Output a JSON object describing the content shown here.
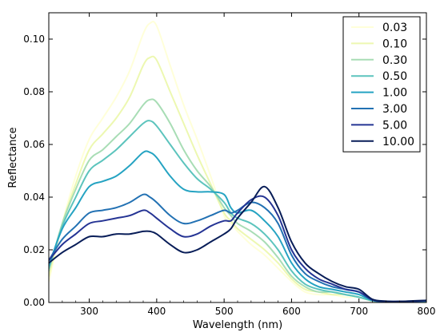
{
  "chart_data": {
    "type": "line",
    "xlabel": "Wavelength (nm)",
    "ylabel": "Reflectance",
    "xlim": [
      240,
      800
    ],
    "ylim": [
      0.0,
      0.11
    ],
    "x_ticks": [
      "300",
      "400",
      "500",
      "600",
      "700",
      "800"
    ],
    "y_ticks": [
      "0.00",
      "0.02",
      "0.04",
      "0.06",
      "0.08",
      "0.10"
    ],
    "grid": false,
    "legend_position": "top-right",
    "x": [
      240,
      260,
      280,
      300,
      320,
      340,
      360,
      380,
      390,
      400,
      420,
      440,
      460,
      480,
      500,
      510,
      520,
      540,
      560,
      580,
      600,
      620,
      640,
      660,
      680,
      700,
      720,
      740,
      760,
      780,
      800
    ],
    "series": [
      {
        "name": "0.03",
        "color": "#ffffd9",
        "values": [
          0.008,
          0.03,
          0.048,
          0.062,
          0.07,
          0.078,
          0.088,
          0.102,
          0.106,
          0.105,
          0.09,
          0.075,
          0.062,
          0.048,
          0.033,
          0.03,
          0.027,
          0.022,
          0.018,
          0.013,
          0.008,
          0.004,
          0.003,
          0.003,
          0.002,
          0.002,
          0.0005,
          0.0003,
          0.0003,
          0.0004,
          0.0005
        ]
      },
      {
        "name": "0.10",
        "color": "#edf8b1",
        "values": [
          0.01,
          0.03,
          0.045,
          0.058,
          0.064,
          0.07,
          0.078,
          0.09,
          0.093,
          0.092,
          0.08,
          0.068,
          0.056,
          0.045,
          0.034,
          0.031,
          0.028,
          0.024,
          0.02,
          0.015,
          0.009,
          0.005,
          0.004,
          0.003,
          0.003,
          0.002,
          0.0006,
          0.0003,
          0.0003,
          0.0004,
          0.0005
        ]
      },
      {
        "name": "0.30",
        "color": "#a8ddb5",
        "values": [
          0.012,
          0.03,
          0.043,
          0.054,
          0.058,
          0.063,
          0.068,
          0.075,
          0.077,
          0.076,
          0.068,
          0.058,
          0.05,
          0.044,
          0.036,
          0.033,
          0.03,
          0.027,
          0.023,
          0.017,
          0.01,
          0.006,
          0.004,
          0.004,
          0.003,
          0.002,
          0.0006,
          0.0003,
          0.0003,
          0.0004,
          0.0005
        ]
      },
      {
        "name": "0.50",
        "color": "#5cc4bd",
        "values": [
          0.013,
          0.029,
          0.04,
          0.05,
          0.054,
          0.058,
          0.063,
          0.068,
          0.069,
          0.067,
          0.06,
          0.053,
          0.047,
          0.043,
          0.038,
          0.034,
          0.032,
          0.03,
          0.026,
          0.02,
          0.012,
          0.007,
          0.005,
          0.004,
          0.003,
          0.002,
          0.0007,
          0.0003,
          0.0003,
          0.0004,
          0.0005
        ]
      },
      {
        "name": "1.00",
        "color": "#25a3c2",
        "values": [
          0.014,
          0.028,
          0.036,
          0.044,
          0.046,
          0.048,
          0.052,
          0.057,
          0.057,
          0.055,
          0.048,
          0.043,
          0.042,
          0.042,
          0.041,
          0.036,
          0.034,
          0.035,
          0.031,
          0.025,
          0.015,
          0.009,
          0.006,
          0.005,
          0.004,
          0.003,
          0.0008,
          0.0003,
          0.0003,
          0.0004,
          0.0006
        ]
      },
      {
        "name": "3.00",
        "color": "#2271b3",
        "values": [
          0.016,
          0.024,
          0.029,
          0.034,
          0.035,
          0.036,
          0.038,
          0.041,
          0.04,
          0.038,
          0.033,
          0.03,
          0.031,
          0.033,
          0.035,
          0.034,
          0.035,
          0.038,
          0.036,
          0.03,
          0.018,
          0.011,
          0.008,
          0.006,
          0.005,
          0.004,
          0.0009,
          0.0004,
          0.0003,
          0.0004,
          0.0006
        ]
      },
      {
        "name": "5.00",
        "color": "#253494",
        "values": [
          0.016,
          0.022,
          0.026,
          0.03,
          0.031,
          0.032,
          0.033,
          0.035,
          0.034,
          0.032,
          0.028,
          0.025,
          0.026,
          0.029,
          0.031,
          0.031,
          0.034,
          0.039,
          0.04,
          0.033,
          0.02,
          0.013,
          0.009,
          0.007,
          0.005,
          0.004,
          0.001,
          0.0004,
          0.0004,
          0.0005,
          0.0007
        ]
      },
      {
        "name": "10.00",
        "color": "#081d58",
        "values": [
          0.015,
          0.019,
          0.022,
          0.025,
          0.025,
          0.026,
          0.026,
          0.027,
          0.027,
          0.026,
          0.022,
          0.019,
          0.02,
          0.023,
          0.026,
          0.028,
          0.032,
          0.038,
          0.044,
          0.036,
          0.023,
          0.015,
          0.011,
          0.008,
          0.006,
          0.005,
          0.0012,
          0.0005,
          0.0004,
          0.0006,
          0.0008
        ]
      }
    ]
  }
}
